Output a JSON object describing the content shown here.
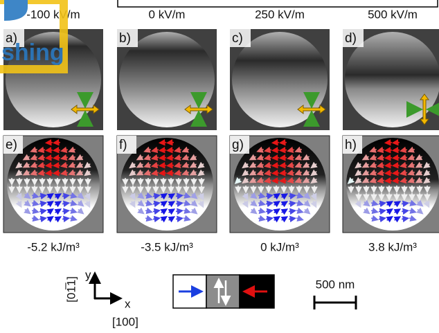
{
  "watermark": "shing",
  "columns": [
    {
      "field": "-100 kV/m",
      "image_label": "a)",
      "domain_label": "e)",
      "energy": "-5.2 kJ/m³"
    },
    {
      "field": "0 kV/m",
      "image_label": "b)",
      "domain_label": "f)",
      "energy": "-3.5 kJ/m³"
    },
    {
      "field": "250 kV/m",
      "image_label": "c)",
      "domain_label": "g)",
      "energy": "0 kJ/m³"
    },
    {
      "field": "500 kV/m",
      "image_label": "d)",
      "domain_label": "h)",
      "energy": "3.8 kJ/m³"
    }
  ],
  "legend": {
    "y_axis": "y",
    "x_axis": "x",
    "y_direction": "[01̅1]",
    "x_direction": "[100]"
  },
  "scale_bar": "500 nm"
}
